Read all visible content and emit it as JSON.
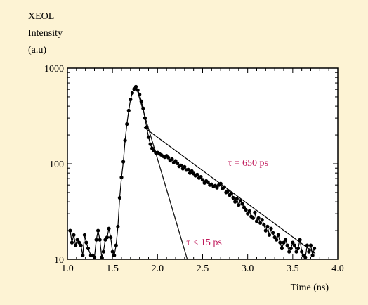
{
  "chart_data": {
    "type": "scatter",
    "ylabel_lines": [
      "XEOL",
      "Intensity",
      "(a.u)"
    ],
    "xlabel": "Time (ns)",
    "xlim": [
      1.0,
      4.0
    ],
    "ylim": [
      10,
      1000
    ],
    "yscale": "log",
    "xticks": [
      "1.0",
      "1.5",
      "2.0",
      "2.5",
      "3.0",
      "3.5",
      "4.0"
    ],
    "yticks": [
      "10",
      "100",
      "1000"
    ],
    "annotations": [
      {
        "text": "τ = 650 ps",
        "x": 2.78,
        "y": 95
      },
      {
        "text": "τ < 15 ps",
        "x": 2.32,
        "y": 14
      }
    ],
    "series": [
      {
        "points": [
          [
            1.03,
            20
          ],
          [
            1.05,
            15
          ],
          [
            1.07,
            18
          ],
          [
            1.09,
            14
          ],
          [
            1.11,
            16
          ],
          [
            1.13,
            15
          ],
          [
            1.15,
            14
          ],
          [
            1.17,
            11
          ],
          [
            1.19,
            18
          ],
          [
            1.21,
            15
          ],
          [
            1.23,
            13
          ],
          [
            1.26,
            11
          ],
          [
            1.28,
            11
          ],
          [
            1.3,
            10.5
          ],
          [
            1.32,
            16
          ],
          [
            1.34,
            20
          ],
          [
            1.36,
            16
          ],
          [
            1.38,
            10.5
          ],
          [
            1.4,
            12
          ],
          [
            1.42,
            16
          ],
          [
            1.44,
            17
          ],
          [
            1.46,
            21
          ],
          [
            1.48,
            17
          ],
          [
            1.5,
            12
          ],
          [
            1.52,
            11
          ],
          [
            1.54,
            14
          ],
          [
            1.56,
            22
          ],
          [
            1.58,
            44
          ],
          [
            1.6,
            72
          ],
          [
            1.62,
            105
          ],
          [
            1.64,
            175
          ],
          [
            1.66,
            260
          ],
          [
            1.68,
            360
          ],
          [
            1.7,
            470
          ],
          [
            1.72,
            550
          ],
          [
            1.74,
            605
          ],
          [
            1.76,
            640
          ],
          [
            1.78,
            590
          ],
          [
            1.8,
            530
          ],
          [
            1.82,
            450
          ],
          [
            1.84,
            380
          ],
          [
            1.86,
            300
          ],
          [
            1.88,
            240
          ],
          [
            1.9,
            190
          ],
          [
            1.92,
            160
          ],
          [
            1.94,
            145
          ],
          [
            1.96,
            137
          ],
          [
            1.98,
            130
          ],
          [
            2.0,
            131
          ],
          [
            2.02,
            127
          ],
          [
            2.04,
            124
          ],
          [
            2.06,
            120
          ],
          [
            2.08,
            117
          ],
          [
            2.1,
            121
          ],
          [
            2.12,
            116
          ],
          [
            2.14,
            108
          ],
          [
            2.16,
            112
          ],
          [
            2.18,
            103
          ],
          [
            2.2,
            107
          ],
          [
            2.22,
            101
          ],
          [
            2.24,
            94
          ],
          [
            2.26,
            96
          ],
          [
            2.28,
            89
          ],
          [
            2.3,
            93
          ],
          [
            2.32,
            86
          ],
          [
            2.34,
            87
          ],
          [
            2.36,
            80
          ],
          [
            2.38,
            84
          ],
          [
            2.4,
            79
          ],
          [
            2.42,
            75
          ],
          [
            2.44,
            77
          ],
          [
            2.46,
            71
          ],
          [
            2.48,
            73
          ],
          [
            2.5,
            68
          ],
          [
            2.52,
            63
          ],
          [
            2.54,
            66
          ],
          [
            2.56,
            64
          ],
          [
            2.58,
            60
          ],
          [
            2.6,
            61
          ],
          [
            2.62,
            58
          ],
          [
            2.64,
            59
          ],
          [
            2.66,
            56
          ],
          [
            2.68,
            60
          ],
          [
            2.7,
            62
          ],
          [
            2.72,
            55
          ],
          [
            2.74,
            57
          ],
          [
            2.76,
            50
          ],
          [
            2.78,
            52
          ],
          [
            2.8,
            47
          ],
          [
            2.82,
            49
          ],
          [
            2.84,
            44
          ],
          [
            2.86,
            40
          ],
          [
            2.88,
            43
          ],
          [
            2.9,
            37
          ],
          [
            2.92,
            41
          ],
          [
            2.94,
            38
          ],
          [
            2.96,
            35
          ],
          [
            2.98,
            33
          ],
          [
            3.0,
            30
          ],
          [
            3.02,
            32
          ],
          [
            3.04,
            28
          ],
          [
            3.06,
            27
          ],
          [
            3.08,
            31
          ],
          [
            3.1,
            25
          ],
          [
            3.12,
            27
          ],
          [
            3.14,
            24
          ],
          [
            3.16,
            26
          ],
          [
            3.18,
            23
          ],
          [
            3.2,
            20
          ],
          [
            3.22,
            22
          ],
          [
            3.24,
            18
          ],
          [
            3.26,
            21
          ],
          [
            3.28,
            19
          ],
          [
            3.3,
            17
          ],
          [
            3.32,
            16
          ],
          [
            3.34,
            18
          ],
          [
            3.36,
            15
          ],
          [
            3.38,
            13
          ],
          [
            3.4,
            15
          ],
          [
            3.42,
            16
          ],
          [
            3.44,
            14
          ],
          [
            3.46,
            12
          ],
          [
            3.48,
            13
          ],
          [
            3.5,
            15
          ],
          [
            3.52,
            14
          ],
          [
            3.54,
            12
          ],
          [
            3.56,
            13
          ],
          [
            3.58,
            16
          ],
          [
            3.6,
            12
          ],
          [
            3.62,
            11
          ],
          [
            3.64,
            10.5
          ],
          [
            3.66,
            14
          ],
          [
            3.68,
            12
          ],
          [
            3.7,
            14
          ],
          [
            3.72,
            11
          ],
          [
            3.74,
            13
          ]
        ]
      }
    ],
    "fit_lines": [
      {
        "label": "τ = 650 ps",
        "points": [
          [
            1.85,
            240
          ],
          [
            3.75,
            11.5
          ]
        ]
      },
      {
        "label": "τ < 15 ps",
        "points": [
          [
            1.78,
            560
          ],
          [
            2.33,
            10
          ]
        ]
      }
    ]
  }
}
